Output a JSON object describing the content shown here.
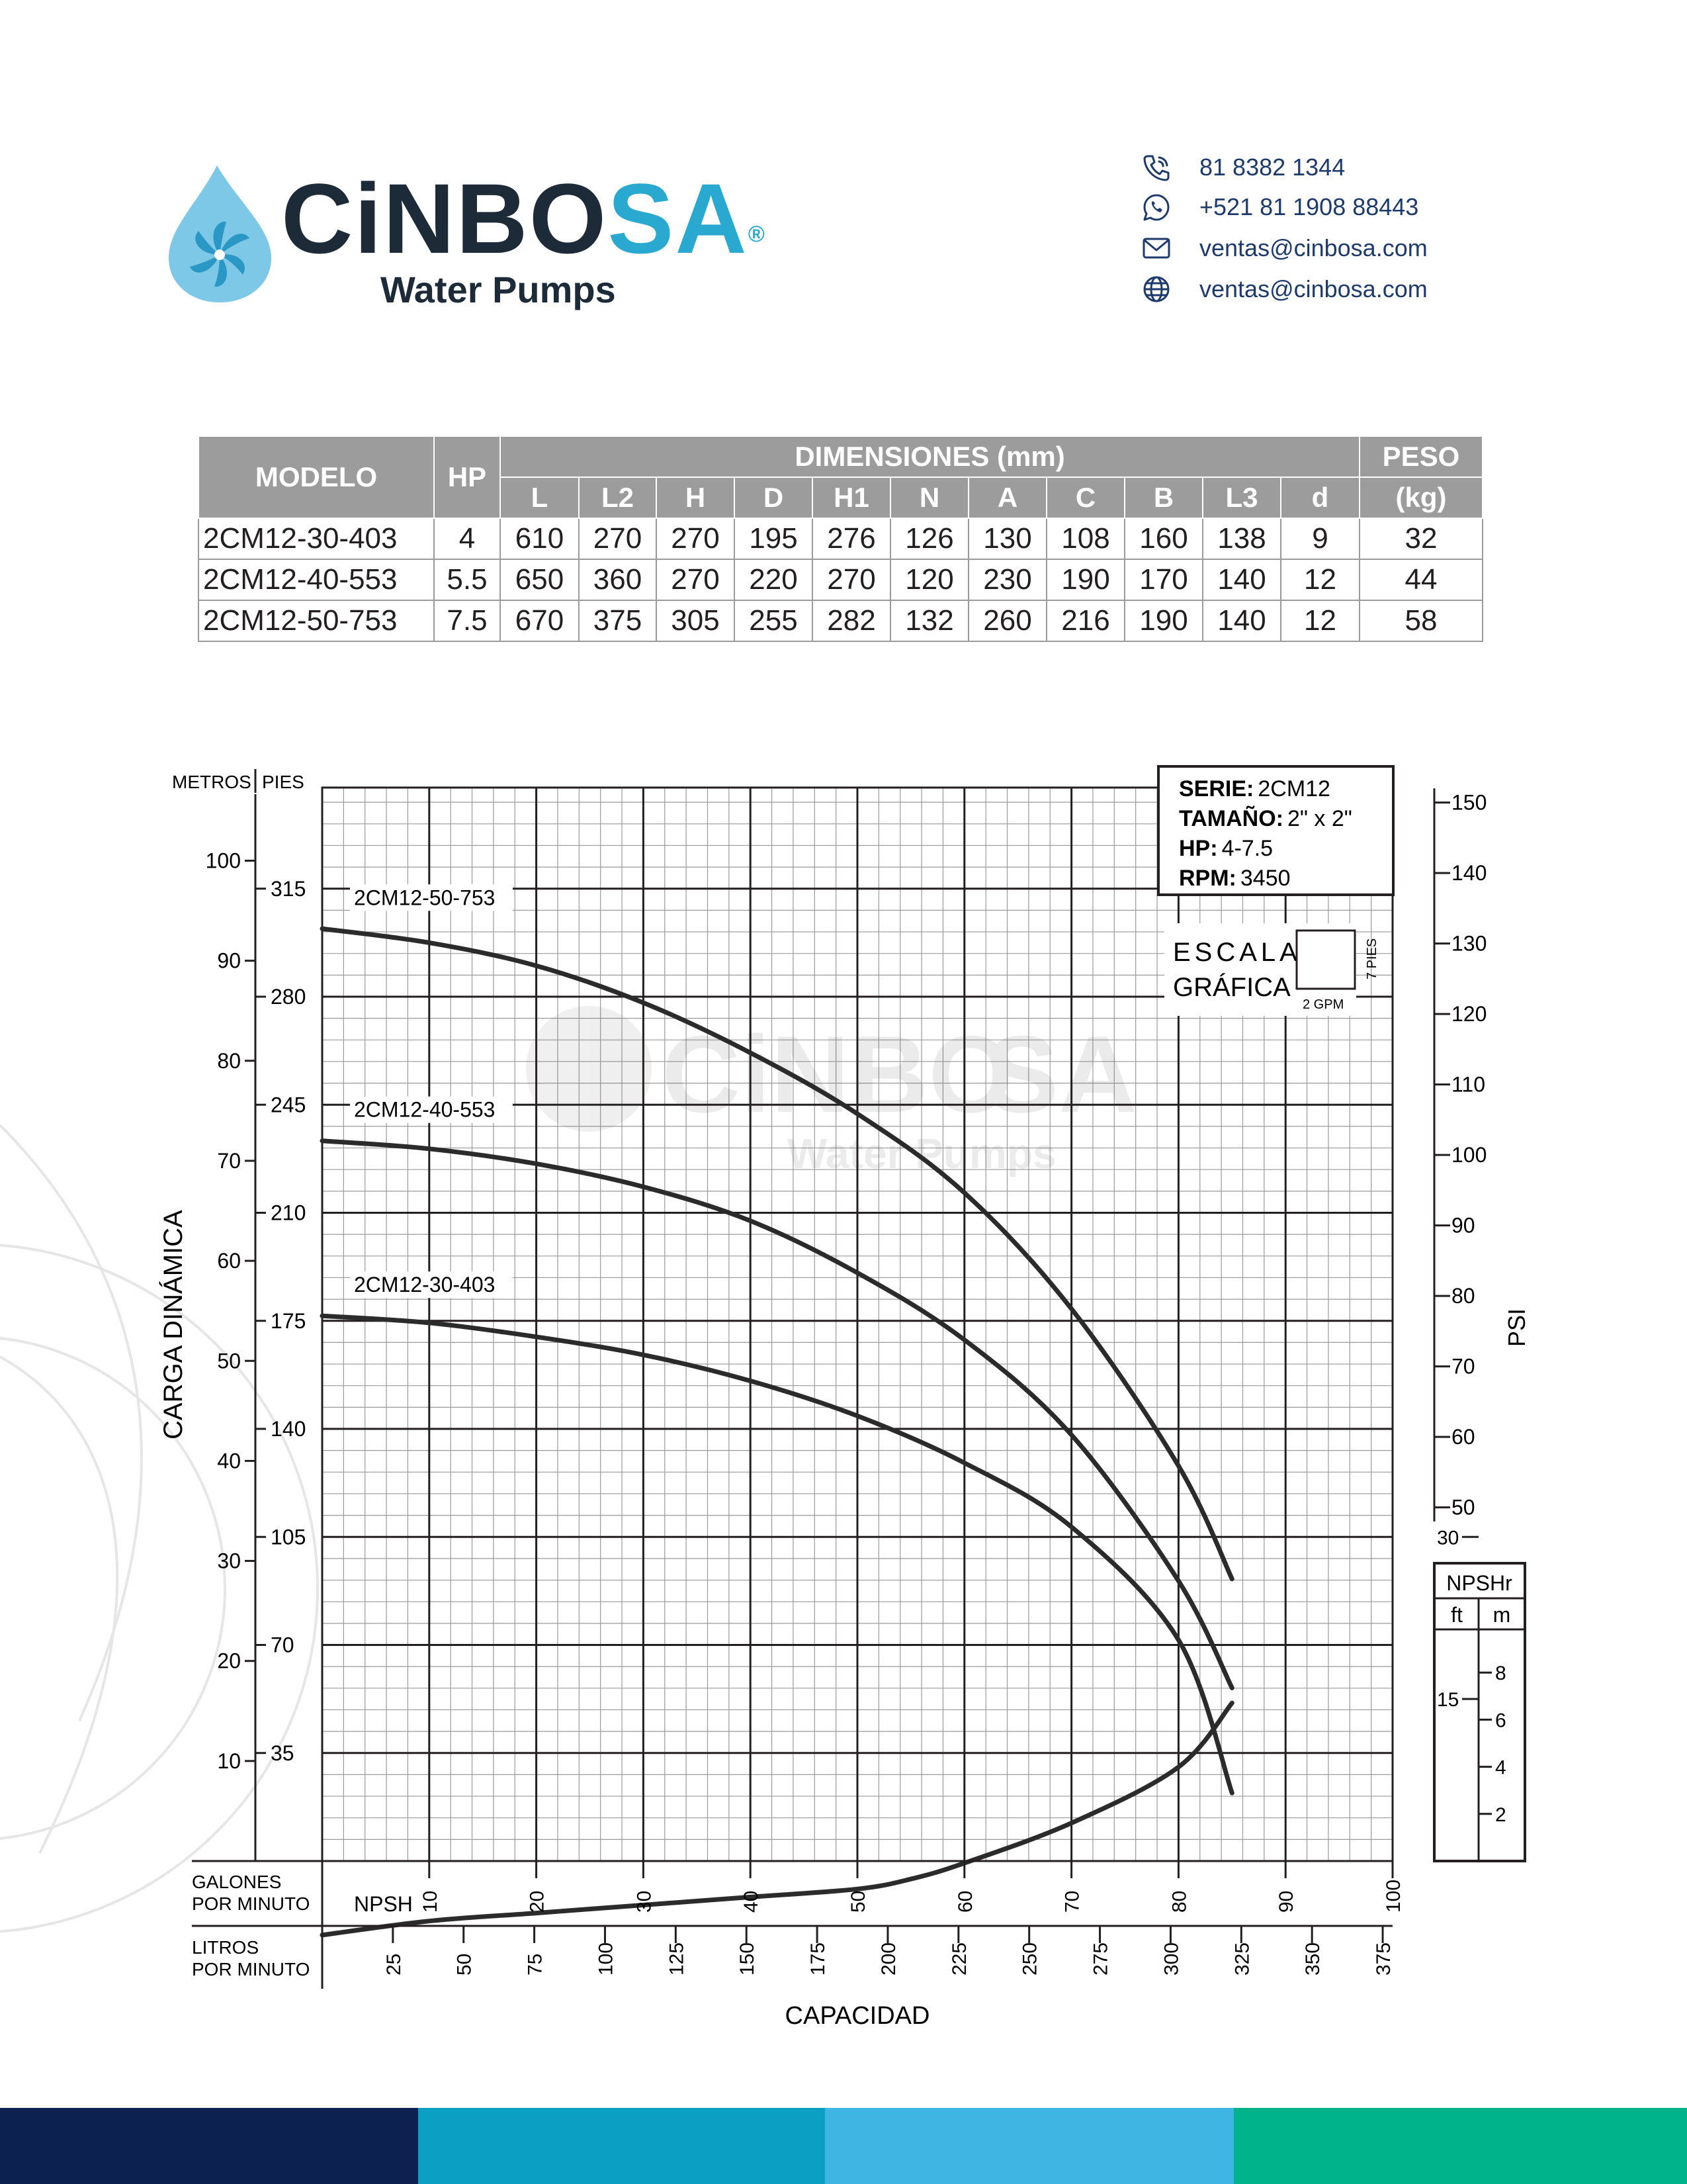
{
  "brand": {
    "name_dark": "CiNBO",
    "name_blue": "SA",
    "registered": "®",
    "tagline": "Water Pumps"
  },
  "contact": {
    "phone": "81 8382 1344",
    "whatsapp": "+521 81 1908 88443",
    "email": "ventas@cinbosa.com",
    "web": "ventas@cinbosa.com"
  },
  "table": {
    "headers": {
      "model": "MODELO",
      "hp": "HP",
      "dimensions": "DIMENSIONES (mm)",
      "weight_top": "PESO",
      "weight_bottom": "(kg)",
      "dims": [
        "L",
        "L2",
        "H",
        "D",
        "H1",
        "N",
        "A",
        "C",
        "B",
        "L3",
        "d"
      ]
    },
    "rows": [
      {
        "model": "2CM12-30-403",
        "hp": "4",
        "dims": [
          "610",
          "270",
          "270",
          "195",
          "276",
          "126",
          "130",
          "108",
          "160",
          "138",
          "9"
        ],
        "weight": "32"
      },
      {
        "model": "2CM12-40-553",
        "hp": "5.5",
        "dims": [
          "650",
          "360",
          "270",
          "220",
          "270",
          "120",
          "230",
          "190",
          "170",
          "140",
          "12"
        ],
        "weight": "44"
      },
      {
        "model": "2CM12-50-753",
        "hp": "7.5",
        "dims": [
          "670",
          "375",
          "305",
          "255",
          "282",
          "132",
          "260",
          "216",
          "190",
          "140",
          "12"
        ],
        "weight": "58"
      }
    ]
  },
  "chart_info": {
    "serie_label": "SERIE:",
    "serie": "2CM12",
    "size_label": "TAMAÑO:",
    "size": "2\" x 2\"",
    "hp_label": "HP:",
    "hp": "4-7.5",
    "rpm_label": "RPM:",
    "rpm": "3450",
    "scale_line1": "ESCALA",
    "scale_line2": "GRÁFICA",
    "scale_v": "7 PIES",
    "scale_h": "2 GPM",
    "metros": "METROS",
    "pies": "PIES",
    "psi": "PSI",
    "npshr": "NPSHr",
    "ft": "ft",
    "m": "m",
    "y_axis_title": "CARGA DINÁMICA",
    "gpm_label_1": "GALONES",
    "gpm_label_2": "POR MINUTO",
    "lpm_label_1": "LITROS",
    "lpm_label_2": "POR MINUTO",
    "x_axis_title": "CAPACIDAD"
  },
  "chart_data": {
    "type": "line",
    "xlabel": "CAPACIDAD",
    "ylabel": "CARGA DINÁMICA",
    "x_unit": "GALONES POR MINUTO",
    "x_range": [
      0,
      100
    ],
    "y_range_m": [
      0,
      107
    ],
    "x_ticks_gpm": [
      10,
      20,
      30,
      40,
      50,
      60,
      70,
      80,
      90,
      100
    ],
    "x_ticks_lpm": [
      25,
      50,
      75,
      100,
      125,
      150,
      175,
      200,
      225,
      250,
      275,
      300,
      325,
      350,
      375
    ],
    "y_ticks_m": [
      10,
      20,
      30,
      40,
      50,
      60,
      70,
      80,
      90,
      100
    ],
    "y_ticks_ft": [
      35,
      70,
      105,
      140,
      175,
      210,
      245,
      280,
      315
    ],
    "y_ticks_psi": [
      50,
      60,
      70,
      80,
      90,
      100,
      110,
      120,
      130,
      140,
      150
    ],
    "npshr_ticks_ft": [
      15,
      30
    ],
    "npshr_ticks_m": [
      2,
      4,
      6,
      8
    ],
    "grid": true,
    "series": [
      {
        "name": "2CM12-50-753",
        "x": [
          0,
          10,
          20,
          30,
          40,
          50,
          60,
          70,
          80,
          85
        ],
        "y": [
          93.2,
          91.8,
          89.5,
          85.8,
          80.8,
          74.7,
          66.8,
          55.2,
          39.5,
          28.2
        ]
      },
      {
        "name": "2CM12-40-553",
        "x": [
          0,
          10,
          20,
          30,
          40,
          50,
          60,
          70,
          80,
          85
        ],
        "y": [
          72.0,
          71.2,
          69.7,
          67.4,
          64.0,
          58.8,
          52.1,
          42.6,
          28.0,
          17.3
        ]
      },
      {
        "name": "2CM12-30-403",
        "x": [
          0,
          10,
          20,
          30,
          40,
          50,
          60,
          70,
          80,
          85
        ],
        "y": [
          54.5,
          53.8,
          52.4,
          50.6,
          48.0,
          44.5,
          39.8,
          33.4,
          22.1,
          6.8
        ]
      },
      {
        "name": "NPSH",
        "x": [
          0,
          10,
          20,
          30,
          40,
          50,
          55,
          60,
          70,
          80,
          85
        ],
        "y": [
          -7.4,
          -6.0,
          -5.2,
          -4.4,
          -3.6,
          -2.8,
          -1.8,
          -0.2,
          3.8,
          9.4,
          15.8
        ]
      }
    ]
  }
}
